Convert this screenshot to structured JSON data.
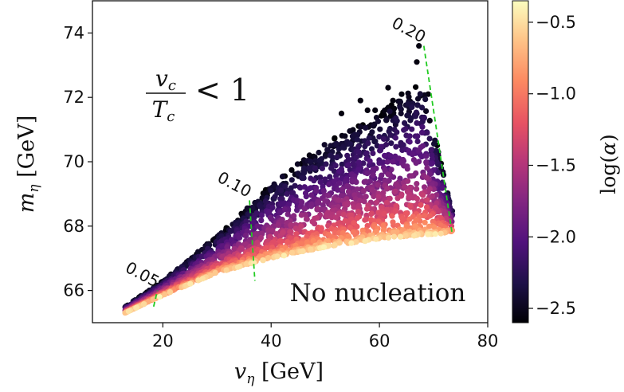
{
  "chart_data": {
    "type": "scatter",
    "xlabel": "v_η [GeV]",
    "ylabel": "m_η [GeV]",
    "xlim": [
      7,
      80
    ],
    "ylim": [
      65,
      75
    ],
    "x_ticks": [
      "20",
      "40",
      "60",
      "80"
    ],
    "y_ticks": [
      "66",
      "68",
      "70",
      "72",
      "74"
    ],
    "colorbar": {
      "label": "log(α)",
      "range": [
        -2.6,
        -0.35
      ],
      "ticks": [
        "−0.5",
        "−1.0",
        "−1.5",
        "−2.0",
        "−2.5"
      ],
      "colormap": "magma"
    },
    "annotations": {
      "condition": "v_c / T_c < 1",
      "region": "No nucleation"
    },
    "contours": [
      {
        "label": "0.05",
        "color": "#22cc22",
        "points": [
          [
            18.3,
            65.5
          ],
          [
            19.0,
            66.0
          ]
        ]
      },
      {
        "label": "0.10",
        "color": "#22cc22",
        "points": [
          [
            36.0,
            68.8
          ],
          [
            37.0,
            66.3
          ]
        ]
      },
      {
        "label": "0.20",
        "color": "#22cc22",
        "points": [
          [
            68.2,
            73.6
          ],
          [
            73.4,
            67.8
          ]
        ]
      }
    ],
    "scatter_model": {
      "x_range": [
        13,
        73.5
      ],
      "lower_edge": [
        [
          13,
          65.3
        ],
        [
          20,
          65.85
        ],
        [
          30,
          66.55
        ],
        [
          40,
          67.0
        ],
        [
          50,
          67.35
        ],
        [
          60,
          67.6
        ],
        [
          73.5,
          67.8
        ]
      ],
      "upper_edge": [
        [
          13,
          65.5
        ],
        [
          20,
          66.3
        ],
        [
          30,
          67.7
        ],
        [
          40,
          69.3
        ],
        [
          50,
          70.6
        ],
        [
          60,
          71.5
        ],
        [
          68,
          72.5
        ],
        [
          73.5,
          68.5
        ]
      ],
      "sparse_outliers": [
        [
          67.3,
          73.6
        ],
        [
          66.9,
          73.1
        ],
        [
          64.1,
          72.1
        ],
        [
          61.6,
          72.3
        ],
        [
          56.5,
          71.9
        ],
        [
          53.0,
          71.5
        ],
        [
          59.2,
          71.6
        ],
        [
          62.5,
          71.9
        ],
        [
          69.0,
          72.1
        ],
        [
          57.8,
          71.6
        ]
      ]
    }
  }
}
